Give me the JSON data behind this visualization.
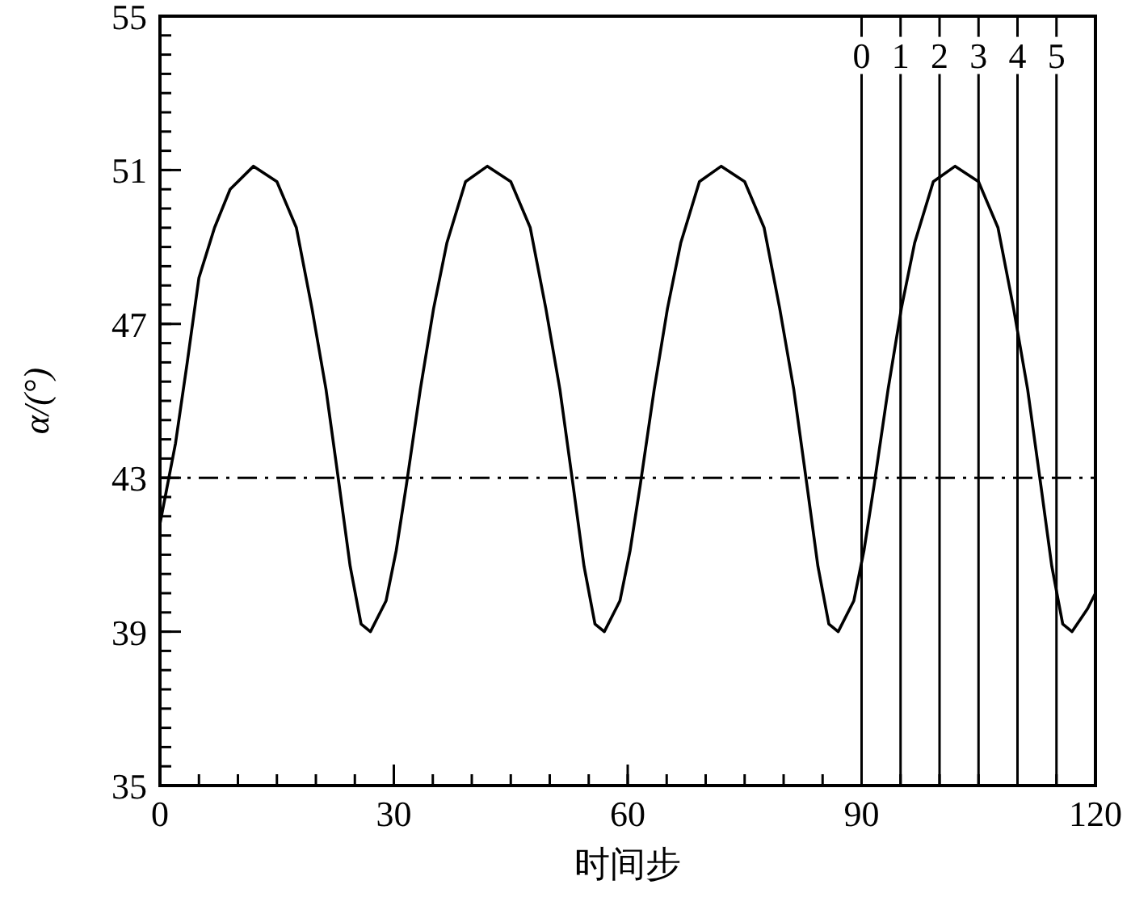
{
  "chart_data": {
    "type": "line",
    "xlabel": "时间步",
    "ylabel": "α/(°)",
    "xlim": [
      0,
      120
    ],
    "xticks": [
      0,
      30,
      60,
      90,
      120
    ],
    "ylim": [
      35,
      55
    ],
    "yticks": [
      35,
      39,
      43,
      47,
      51,
      55
    ],
    "x": [
      0,
      2,
      3.5,
      5,
      7,
      9,
      12,
      15,
      17.5,
      19.5,
      21.3,
      23,
      24.4,
      25.8,
      27,
      29,
      30.3,
      31.6,
      33.4,
      35.1,
      36.8,
      39.2,
      42,
      45,
      47.5,
      49.5,
      51.3,
      53,
      54.4,
      55.8,
      57,
      59,
      60.3,
      61.6,
      63.4,
      65.1,
      66.8,
      69.2,
      72,
      75,
      77.5,
      79.5,
      81.3,
      83,
      84.4,
      85.8,
      87,
      89,
      90.3,
      91.6,
      93.4,
      95.1,
      96.8,
      99.2,
      102,
      105,
      107.5,
      109.5,
      111.3,
      113,
      114.4,
      115.8,
      117,
      119,
      120
    ],
    "series": [
      {
        "color": "#000000",
        "values": [
          41.8,
          43.9,
          46.0,
          48.2,
          49.5,
          50.5,
          51.1,
          50.7,
          49.5,
          47.4,
          45.3,
          42.8,
          40.7,
          39.2,
          39.0,
          39.8,
          41.1,
          42.8,
          45.3,
          47.4,
          49.1,
          50.7,
          51.1,
          50.7,
          49.5,
          47.4,
          45.3,
          42.8,
          40.7,
          39.2,
          39.0,
          39.8,
          41.1,
          42.8,
          45.3,
          47.4,
          49.1,
          50.7,
          51.1,
          50.7,
          49.5,
          47.4,
          45.3,
          42.8,
          40.7,
          39.2,
          39.0,
          39.8,
          41.1,
          42.8,
          45.3,
          47.4,
          49.1,
          50.7,
          51.1,
          50.7,
          49.5,
          47.4,
          45.3,
          42.8,
          40.7,
          39.2,
          39.0,
          39.6,
          40.0
        ]
      }
    ],
    "ref_lines": [
      {
        "axis": "y",
        "value": 43,
        "line_style": "dashdot",
        "color": "#000000"
      },
      {
        "axis": "x",
        "value": 90,
        "color": "#000000"
      },
      {
        "axis": "x",
        "value": 95,
        "color": "#000000"
      },
      {
        "axis": "x",
        "value": 100,
        "color": "#000000"
      },
      {
        "axis": "x",
        "value": 105,
        "color": "#000000"
      },
      {
        "axis": "x",
        "value": 110,
        "color": "#000000"
      },
      {
        "axis": "x",
        "value": 115,
        "color": "#000000"
      }
    ],
    "annotations": [
      {
        "text": "0",
        "x": 90,
        "y": 54
      },
      {
        "text": "1",
        "x": 95,
        "y": 54
      },
      {
        "text": "2",
        "x": 100,
        "y": 54
      },
      {
        "text": "3",
        "x": 105,
        "y": 54
      },
      {
        "text": "4",
        "x": 110,
        "y": 54
      },
      {
        "text": "5",
        "x": 115,
        "y": 54
      }
    ],
    "grid": false,
    "marker": "none",
    "line_style": "solid"
  }
}
